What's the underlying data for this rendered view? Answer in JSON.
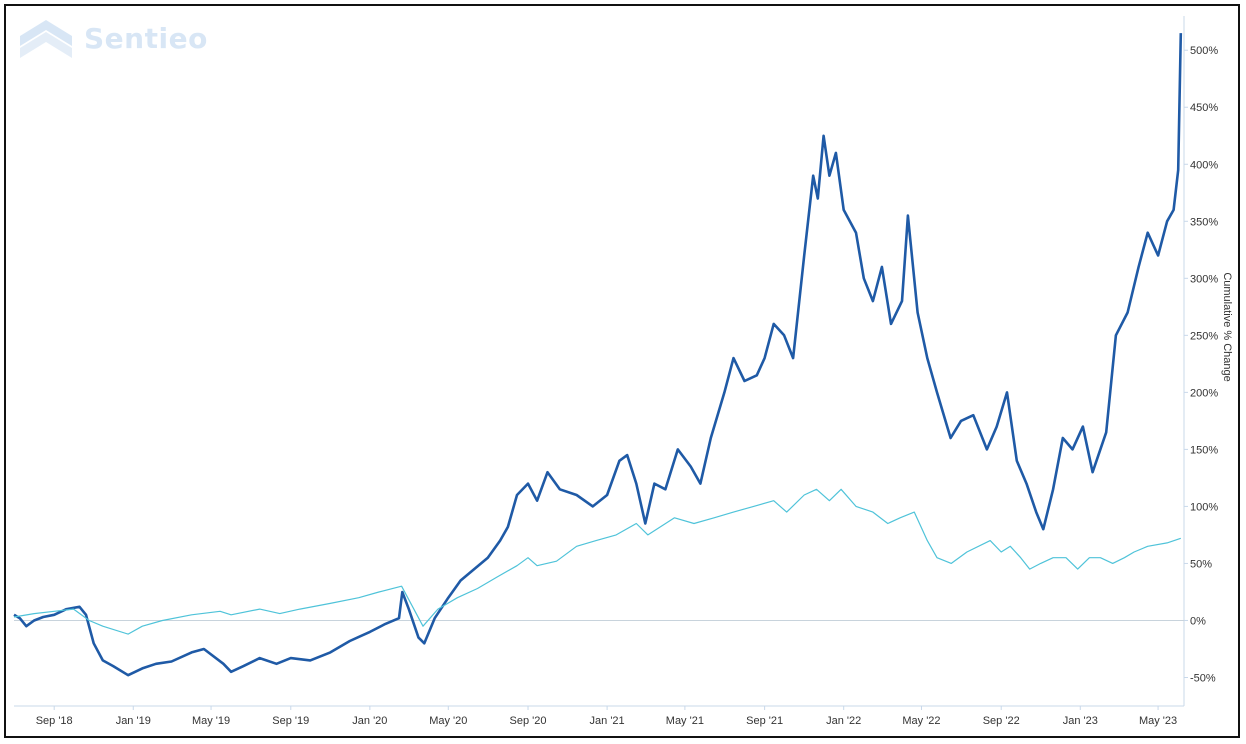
{
  "brand": {
    "name": "Sentieo",
    "logo_icon": "sentieo-chevron-logo-icon"
  },
  "chart_data": {
    "type": "line",
    "title": "",
    "xlabel": "",
    "ylabel": "Cumulative % Change",
    "x_tick_labels": [
      "Sep '18",
      "Jan '19",
      "May '19",
      "Sep '19",
      "Jan '20",
      "May '20",
      "Sep '20",
      "Jan '21",
      "May '21",
      "Sep '21",
      "Jan '22",
      "May '22",
      "Sep '22",
      "Jan '23",
      "May '23"
    ],
    "y_tick_labels": [
      "-50%",
      "0%",
      "50%",
      "100%",
      "150%",
      "200%",
      "250%",
      "300%",
      "350%",
      "400%",
      "450%",
      "500%"
    ],
    "ylim": [
      -75,
      530
    ],
    "xlim": [
      "2018-07-01",
      "2023-06-10"
    ],
    "grid": false,
    "zero_line": true,
    "colors": {
      "series_1": "#1f5aa6",
      "series_2": "#4fc3d9",
      "zero_line": "#c8d3dc",
      "axis": "#c8d8ea"
    },
    "series": [
      {
        "points": [
          [
            "2018-07-01",
            5
          ],
          [
            "2018-07-10",
            2
          ],
          [
            "2018-07-20",
            -5
          ],
          [
            "2018-08-01",
            0
          ],
          [
            "2018-08-15",
            3
          ],
          [
            "2018-09-01",
            5
          ],
          [
            "2018-09-20",
            10
          ],
          [
            "2018-10-10",
            12
          ],
          [
            "2018-10-20",
            5
          ],
          [
            "2018-11-01",
            -20
          ],
          [
            "2018-11-15",
            -35
          ],
          [
            "2018-12-01",
            -40
          ],
          [
            "2018-12-24",
            -48
          ],
          [
            "2019-01-15",
            -42
          ],
          [
            "2019-02-05",
            -38
          ],
          [
            "2019-03-01",
            -36
          ],
          [
            "2019-04-01",
            -28
          ],
          [
            "2019-04-20",
            -25
          ],
          [
            "2019-05-20",
            -38
          ],
          [
            "2019-06-01",
            -45
          ],
          [
            "2019-06-20",
            -40
          ],
          [
            "2019-07-15",
            -33
          ],
          [
            "2019-08-10",
            -38
          ],
          [
            "2019-09-01",
            -33
          ],
          [
            "2019-10-01",
            -35
          ],
          [
            "2019-11-01",
            -28
          ],
          [
            "2019-12-01",
            -18
          ],
          [
            "2020-01-01",
            -10
          ],
          [
            "2020-01-25",
            -3
          ],
          [
            "2020-02-15",
            2
          ],
          [
            "2020-02-20",
            25
          ],
          [
            "2020-03-01",
            10
          ],
          [
            "2020-03-16",
            -15
          ],
          [
            "2020-03-25",
            -20
          ],
          [
            "2020-04-10",
            2
          ],
          [
            "2020-05-01",
            20
          ],
          [
            "2020-05-20",
            35
          ],
          [
            "2020-06-10",
            45
          ],
          [
            "2020-07-01",
            55
          ],
          [
            "2020-07-20",
            70
          ],
          [
            "2020-08-01",
            82
          ],
          [
            "2020-08-15",
            110
          ],
          [
            "2020-09-01",
            120
          ],
          [
            "2020-09-15",
            105
          ],
          [
            "2020-10-01",
            130
          ],
          [
            "2020-10-20",
            115
          ],
          [
            "2020-11-15",
            110
          ],
          [
            "2020-12-10",
            100
          ],
          [
            "2021-01-01",
            110
          ],
          [
            "2021-01-20",
            140
          ],
          [
            "2021-02-01",
            145
          ],
          [
            "2021-02-15",
            120
          ],
          [
            "2021-03-01",
            85
          ],
          [
            "2021-03-15",
            120
          ],
          [
            "2021-04-01",
            115
          ],
          [
            "2021-04-20",
            150
          ],
          [
            "2021-05-10",
            135
          ],
          [
            "2021-05-25",
            120
          ],
          [
            "2021-06-10",
            160
          ],
          [
            "2021-07-01",
            200
          ],
          [
            "2021-07-15",
            230
          ],
          [
            "2021-08-01",
            210
          ],
          [
            "2021-08-20",
            215
          ],
          [
            "2021-09-01",
            230
          ],
          [
            "2021-09-15",
            260
          ],
          [
            "2021-10-01",
            250
          ],
          [
            "2021-10-15",
            230
          ],
          [
            "2021-11-01",
            320
          ],
          [
            "2021-11-15",
            390
          ],
          [
            "2021-11-22",
            370
          ],
          [
            "2021-12-01",
            425
          ],
          [
            "2021-12-10",
            390
          ],
          [
            "2021-12-20",
            410
          ],
          [
            "2022-01-01",
            360
          ],
          [
            "2022-01-20",
            340
          ],
          [
            "2022-02-01",
            300
          ],
          [
            "2022-02-15",
            280
          ],
          [
            "2022-03-01",
            310
          ],
          [
            "2022-03-15",
            260
          ],
          [
            "2022-04-01",
            280
          ],
          [
            "2022-04-10",
            355
          ],
          [
            "2022-04-25",
            270
          ],
          [
            "2022-05-10",
            230
          ],
          [
            "2022-05-25",
            200
          ],
          [
            "2022-06-15",
            160
          ],
          [
            "2022-07-01",
            175
          ],
          [
            "2022-07-20",
            180
          ],
          [
            "2022-08-10",
            150
          ],
          [
            "2022-08-25",
            170
          ],
          [
            "2022-09-10",
            200
          ],
          [
            "2022-09-25",
            140
          ],
          [
            "2022-10-10",
            120
          ],
          [
            "2022-10-25",
            95
          ],
          [
            "2022-11-05",
            80
          ],
          [
            "2022-11-20",
            115
          ],
          [
            "2022-12-05",
            160
          ],
          [
            "2022-12-20",
            150
          ],
          [
            "2023-01-05",
            170
          ],
          [
            "2023-01-20",
            130
          ],
          [
            "2023-02-10",
            165
          ],
          [
            "2023-02-25",
            250
          ],
          [
            "2023-03-15",
            270
          ],
          [
            "2023-04-01",
            310
          ],
          [
            "2023-04-15",
            340
          ],
          [
            "2023-05-01",
            320
          ],
          [
            "2023-05-15",
            350
          ],
          [
            "2023-05-25",
            360
          ],
          [
            "2023-06-01",
            395
          ],
          [
            "2023-06-05",
            515
          ]
        ]
      },
      {
        "points": [
          [
            "2018-07-01",
            3
          ],
          [
            "2018-08-01",
            6
          ],
          [
            "2018-09-01",
            8
          ],
          [
            "2018-10-01",
            10
          ],
          [
            "2018-10-25",
            0
          ],
          [
            "2018-11-15",
            -5
          ],
          [
            "2018-12-24",
            -12
          ],
          [
            "2019-01-15",
            -5
          ],
          [
            "2019-02-15",
            0
          ],
          [
            "2019-04-01",
            5
          ],
          [
            "2019-05-15",
            8
          ],
          [
            "2019-06-01",
            5
          ],
          [
            "2019-07-15",
            10
          ],
          [
            "2019-08-15",
            6
          ],
          [
            "2019-09-15",
            10
          ],
          [
            "2019-11-01",
            15
          ],
          [
            "2019-12-15",
            20
          ],
          [
            "2020-01-15",
            25
          ],
          [
            "2020-02-19",
            30
          ],
          [
            "2020-03-23",
            -5
          ],
          [
            "2020-04-15",
            10
          ],
          [
            "2020-05-15",
            20
          ],
          [
            "2020-06-15",
            28
          ],
          [
            "2020-07-15",
            38
          ],
          [
            "2020-08-15",
            48
          ],
          [
            "2020-09-01",
            55
          ],
          [
            "2020-09-15",
            48
          ],
          [
            "2020-10-15",
            52
          ],
          [
            "2020-11-15",
            65
          ],
          [
            "2020-12-15",
            70
          ],
          [
            "2021-01-15",
            75
          ],
          [
            "2021-02-15",
            85
          ],
          [
            "2021-03-05",
            75
          ],
          [
            "2021-04-15",
            90
          ],
          [
            "2021-05-15",
            85
          ],
          [
            "2021-06-15",
            90
          ],
          [
            "2021-07-15",
            95
          ],
          [
            "2021-08-15",
            100
          ],
          [
            "2021-09-15",
            105
          ],
          [
            "2021-10-05",
            95
          ],
          [
            "2021-11-01",
            110
          ],
          [
            "2021-11-20",
            115
          ],
          [
            "2021-12-10",
            105
          ],
          [
            "2021-12-28",
            115
          ],
          [
            "2022-01-20",
            100
          ],
          [
            "2022-02-15",
            95
          ],
          [
            "2022-03-10",
            85
          ],
          [
            "2022-03-29",
            90
          ],
          [
            "2022-04-20",
            95
          ],
          [
            "2022-05-10",
            70
          ],
          [
            "2022-05-25",
            55
          ],
          [
            "2022-06-16",
            50
          ],
          [
            "2022-07-10",
            60
          ],
          [
            "2022-08-15",
            70
          ],
          [
            "2022-09-01",
            60
          ],
          [
            "2022-09-15",
            65
          ],
          [
            "2022-10-01",
            55
          ],
          [
            "2022-10-15",
            45
          ],
          [
            "2022-11-01",
            50
          ],
          [
            "2022-11-20",
            55
          ],
          [
            "2022-12-10",
            55
          ],
          [
            "2022-12-28",
            45
          ],
          [
            "2023-01-15",
            55
          ],
          [
            "2023-02-01",
            55
          ],
          [
            "2023-02-20",
            50
          ],
          [
            "2023-03-10",
            55
          ],
          [
            "2023-03-25",
            60
          ],
          [
            "2023-04-15",
            65
          ],
          [
            "2023-05-15",
            68
          ],
          [
            "2023-06-05",
            72
          ]
        ]
      }
    ]
  }
}
